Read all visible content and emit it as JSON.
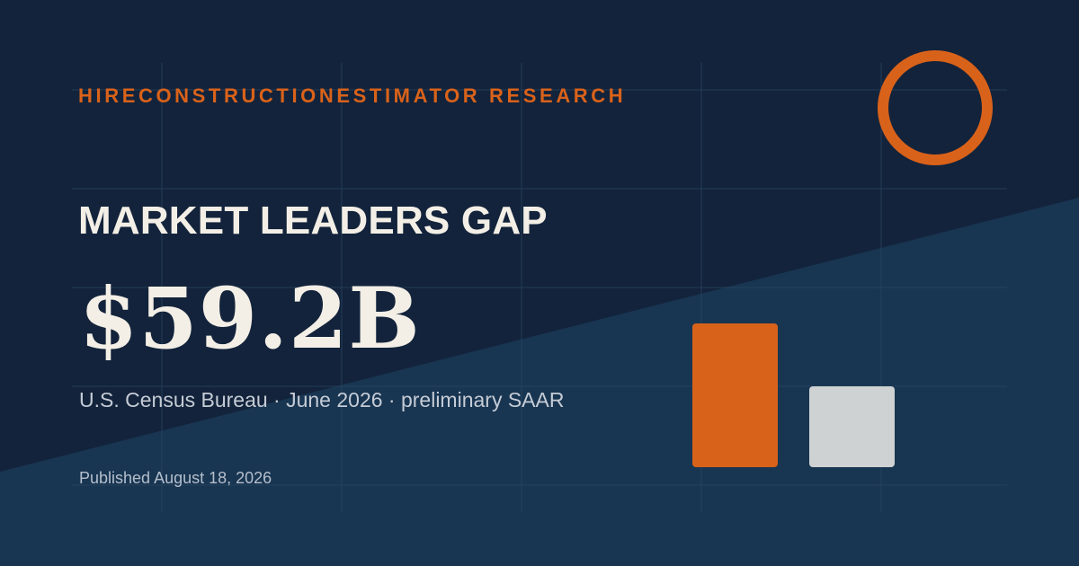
{
  "brand": {
    "name": "HIRECONSTRUCTIONESTIMATOR RESEARCH"
  },
  "headline": "MARKET LEADERS GAP",
  "metric": {
    "value": "$59.2B"
  },
  "source_line": "U.S. Census Bureau · June 2026 · preliminary SAAR",
  "published": "Published August 18, 2026",
  "decor": {
    "ring_icon": "ring-icon",
    "bars": [
      {
        "name": "leader-bar",
        "color": "#d9621a"
      },
      {
        "name": "runner-up-bar",
        "color": "#cfd2d2"
      }
    ]
  },
  "colors": {
    "background_top": "#13233b",
    "background_bottom": "#183551",
    "accent": "#d9621a",
    "text": "#f3efe6"
  }
}
